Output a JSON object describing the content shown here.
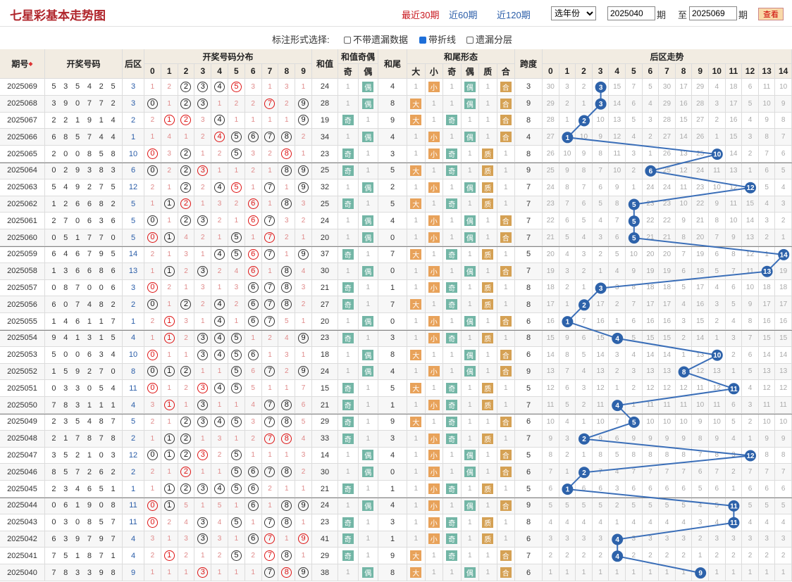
{
  "title": "七星彩基本走势图",
  "periods": [
    {
      "label": "最近30期",
      "active": true
    },
    {
      "label": "近60期",
      "active": false
    },
    {
      "label": "近120期",
      "active": false
    }
  ],
  "year_select": "选年份",
  "from_value": "2025040",
  "label_qi": "期",
  "label_to": "至",
  "to_value": "2025069",
  "query_label": "查看",
  "options": {
    "prompt": "标注形式选择:",
    "items": [
      {
        "label": "不带遗漏数据",
        "checked": false
      },
      {
        "label": "带折线",
        "checked": true
      },
      {
        "label": "遗漏分层",
        "checked": false
      }
    ]
  },
  "headers": {
    "issue": "期号",
    "numbers": "开奖号码",
    "back": "后区",
    "dist": "开奖号码分布",
    "sum": "和值",
    "sum_oe": "和值奇偶",
    "odd": "奇",
    "even": "偶",
    "tail": "和尾",
    "tail_shape": "和尾形态",
    "big": "大",
    "small": "小",
    "prime": "质",
    "comp": "合",
    "span": "跨度",
    "back_trend": "后区走势",
    "digits": [
      "0",
      "1",
      "2",
      "3",
      "4",
      "5",
      "6",
      "7",
      "8",
      "9"
    ],
    "back_digits": [
      "0",
      "1",
      "2",
      "3",
      "4",
      "5",
      "6",
      "7",
      "8",
      "9",
      "10",
      "11",
      "12",
      "13",
      "14"
    ]
  },
  "rows": [
    {
      "issue": "2025069",
      "nums": [
        "5",
        "3",
        "5",
        "4",
        "2",
        "5"
      ],
      "back": "3",
      "sum": "24",
      "tail": "4",
      "span": "3"
    },
    {
      "issue": "2025068",
      "nums": [
        "3",
        "9",
        "0",
        "7",
        "7",
        "2"
      ],
      "back": "3",
      "sum": "28",
      "tail": "8",
      "span": "9"
    },
    {
      "issue": "2025067",
      "nums": [
        "2",
        "2",
        "1",
        "9",
        "1",
        "4"
      ],
      "back": "2",
      "sum": "19",
      "tail": "9",
      "span": "8"
    },
    {
      "issue": "2025066",
      "nums": [
        "6",
        "8",
        "5",
        "7",
        "4",
        "4"
      ],
      "back": "1",
      "sum": "34",
      "tail": "4",
      "span": "4"
    },
    {
      "issue": "2025065",
      "nums": [
        "2",
        "0",
        "0",
        "8",
        "5",
        "8"
      ],
      "back": "10",
      "sum": "23",
      "tail": "3",
      "span": "8"
    },
    {
      "issue": "2025064",
      "nums": [
        "0",
        "2",
        "9",
        "3",
        "8",
        "3"
      ],
      "back": "6",
      "sum": "25",
      "tail": "5",
      "span": "9"
    },
    {
      "issue": "2025063",
      "nums": [
        "5",
        "4",
        "9",
        "2",
        "7",
        "5"
      ],
      "back": "12",
      "sum": "32",
      "tail": "2",
      "span": "7"
    },
    {
      "issue": "2025062",
      "nums": [
        "1",
        "2",
        "6",
        "6",
        "8",
        "2"
      ],
      "back": "5",
      "sum": "25",
      "tail": "5",
      "span": "7"
    },
    {
      "issue": "2025061",
      "nums": [
        "2",
        "7",
        "0",
        "6",
        "3",
        "6"
      ],
      "back": "5",
      "sum": "24",
      "tail": "4",
      "span": "7"
    },
    {
      "issue": "2025060",
      "nums": [
        "0",
        "5",
        "1",
        "7",
        "7",
        "0"
      ],
      "back": "5",
      "sum": "20",
      "tail": "0",
      "span": "7"
    },
    {
      "issue": "2025059",
      "nums": [
        "6",
        "4",
        "6",
        "7",
        "9",
        "5"
      ],
      "back": "14",
      "sum": "37",
      "tail": "7",
      "span": "5"
    },
    {
      "issue": "2025058",
      "nums": [
        "1",
        "3",
        "6",
        "6",
        "8",
        "6"
      ],
      "back": "13",
      "sum": "30",
      "tail": "0",
      "span": "7"
    },
    {
      "issue": "2025057",
      "nums": [
        "0",
        "8",
        "7",
        "0",
        "0",
        "6"
      ],
      "back": "3",
      "sum": "21",
      "tail": "1",
      "span": "8"
    },
    {
      "issue": "2025056",
      "nums": [
        "6",
        "0",
        "7",
        "4",
        "8",
        "2"
      ],
      "back": "2",
      "sum": "27",
      "tail": "7",
      "span": "8"
    },
    {
      "issue": "2025055",
      "nums": [
        "1",
        "4",
        "6",
        "1",
        "1",
        "7"
      ],
      "back": "1",
      "sum": "20",
      "tail": "0",
      "span": "6"
    },
    {
      "issue": "2025054",
      "nums": [
        "9",
        "4",
        "1",
        "3",
        "1",
        "5"
      ],
      "back": "4",
      "sum": "23",
      "tail": "3",
      "span": "8"
    },
    {
      "issue": "2025053",
      "nums": [
        "5",
        "0",
        "0",
        "6",
        "3",
        "4"
      ],
      "back": "10",
      "sum": "18",
      "tail": "8",
      "span": "6"
    },
    {
      "issue": "2025052",
      "nums": [
        "1",
        "5",
        "9",
        "2",
        "7",
        "0"
      ],
      "back": "8",
      "sum": "24",
      "tail": "4",
      "span": "9"
    },
    {
      "issue": "2025051",
      "nums": [
        "0",
        "3",
        "3",
        "0",
        "5",
        "4"
      ],
      "back": "11",
      "sum": "15",
      "tail": "5",
      "span": "5"
    },
    {
      "issue": "2025050",
      "nums": [
        "7",
        "8",
        "3",
        "1",
        "1",
        "1"
      ],
      "back": "4",
      "sum": "21",
      "tail": "1",
      "span": "7"
    },
    {
      "issue": "2025049",
      "nums": [
        "2",
        "3",
        "5",
        "4",
        "8",
        "7"
      ],
      "back": "5",
      "sum": "29",
      "tail": "9",
      "span": "6"
    },
    {
      "issue": "2025048",
      "nums": [
        "2",
        "1",
        "7",
        "8",
        "7",
        "8"
      ],
      "back": "2",
      "sum": "33",
      "tail": "3",
      "span": "7"
    },
    {
      "issue": "2025047",
      "nums": [
        "3",
        "5",
        "2",
        "1",
        "0",
        "3"
      ],
      "back": "12",
      "sum": "14",
      "tail": "4",
      "span": "5"
    },
    {
      "issue": "2025046",
      "nums": [
        "8",
        "5",
        "7",
        "2",
        "6",
        "2"
      ],
      "back": "2",
      "sum": "30",
      "tail": "0",
      "span": "6"
    },
    {
      "issue": "2025045",
      "nums": [
        "2",
        "3",
        "4",
        "6",
        "5",
        "1"
      ],
      "back": "1",
      "sum": "21",
      "tail": "1",
      "span": "5"
    },
    {
      "issue": "2025044",
      "nums": [
        "0",
        "6",
        "1",
        "9",
        "0",
        "8"
      ],
      "back": "11",
      "sum": "24",
      "tail": "4",
      "span": "9"
    },
    {
      "issue": "2025043",
      "nums": [
        "0",
        "3",
        "0",
        "8",
        "5",
        "7"
      ],
      "back": "11",
      "sum": "23",
      "tail": "3",
      "span": "8"
    },
    {
      "issue": "2025042",
      "nums": [
        "6",
        "3",
        "9",
        "7",
        "9",
        "7"
      ],
      "back": "4",
      "sum": "41",
      "tail": "1",
      "span": "6"
    },
    {
      "issue": "2025041",
      "nums": [
        "7",
        "5",
        "1",
        "8",
        "7",
        "1"
      ],
      "back": "4",
      "sum": "29",
      "tail": "9",
      "span": "7"
    },
    {
      "issue": "2025040",
      "nums": [
        "7",
        "8",
        "3",
        "3",
        "9",
        "8"
      ],
      "back": "9",
      "sum": "38",
      "tail": "8",
      "span": "6"
    }
  ],
  "colors": {
    "accent": "#c8161d",
    "link": "#2a5da8",
    "line": "#3a6eb8",
    "header_bg": "#f2ece2"
  }
}
